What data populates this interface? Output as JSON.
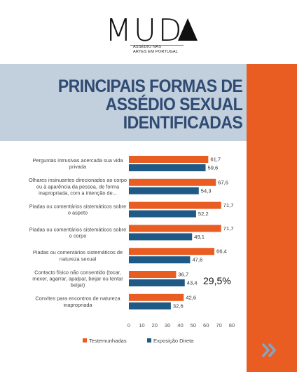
{
  "logo": {
    "word": "M U D",
    "subtitle_line1": "ASSÉDIO NAS",
    "subtitle_line2": "ARTES EM PORTUGAL"
  },
  "title": {
    "line1": "PRINCIPAIS FORMAS DE",
    "line2": "ASSÉDIO SEXUAL",
    "line3": "IDENTIFICADAS"
  },
  "colors": {
    "orange": "#e95d23",
    "blue": "#1f5a86",
    "title": "#2f4a73",
    "band": "#c2cfdc",
    "arrow": "#7fa7c7"
  },
  "annotation": "29,5%",
  "chart_data": {
    "type": "bar",
    "orientation": "horizontal",
    "categories": [
      [
        "Perguntas intrusivas acercada sua vida",
        "privada"
      ],
      [
        "Olhares insinuantes direcionados ao corpo",
        "ou à aparência da pessoa, de forma",
        "inapropriada, com a intenção de..."
      ],
      [
        "Piadas ou comentários sistemáticos sobre",
        "o aspeto"
      ],
      [
        "Piadas ou comentários sistemáticos sobre",
        "o corpo"
      ],
      [
        "Piadas ou comentários sistemáticos de",
        "natureza sexual"
      ],
      [
        "Contacto físico não consentido (tocar,",
        "mexer, agarrar, apalpar, beijar ou tentar",
        "beijar)"
      ],
      [
        "Convites para encontros de natureza",
        "inapropriada"
      ]
    ],
    "series": [
      {
        "name": "Testemunhadas",
        "values": [
          61.7,
          67.6,
          71.7,
          71.7,
          66.4,
          36.7,
          42.6
        ],
        "labels": [
          "61,7",
          "67,6",
          "71,7",
          "71,7",
          "66,4",
          "36,7",
          "42,6"
        ],
        "color": "#e95d23"
      },
      {
        "name": "Exposição Direta",
        "values": [
          59.6,
          54.3,
          52.2,
          49.1,
          47.6,
          43.4,
          32.6
        ],
        "labels": [
          "59,6",
          "54,3",
          "52,2",
          "49,1",
          "47,6",
          "43,4",
          "32,6"
        ],
        "color": "#1f5a86"
      }
    ],
    "xlim": [
      0,
      80
    ],
    "xticks": [
      "0",
      "10",
      "20",
      "30",
      "40",
      "50",
      "60",
      "70",
      "80"
    ],
    "legend_position": "bottom",
    "grid": false
  }
}
